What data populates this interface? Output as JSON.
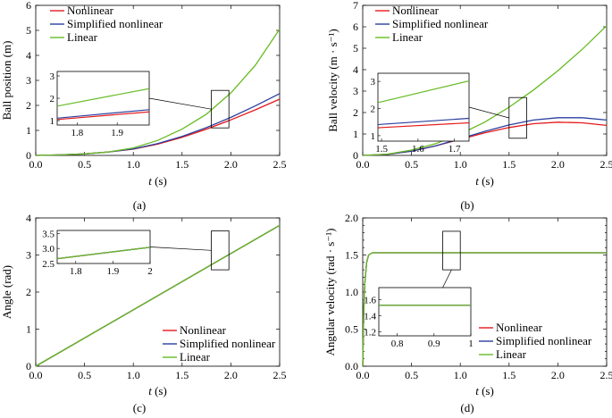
{
  "colors": {
    "nonlinear": "#e41a1c",
    "simplified": "#2b3f9e",
    "linear": "#66bb22"
  },
  "chart_data": [
    {
      "type": "line",
      "caption": "(a)",
      "xlabel_var": "t",
      "xlabel_unit": " (s)",
      "ylabel": "Ball position (m)",
      "xlim": [
        0,
        2.5
      ],
      "ylim": [
        0,
        6
      ],
      "xticks": [
        "0.0",
        "0.5",
        "1.0",
        "1.5",
        "2.0",
        "2.5"
      ],
      "yticks": [
        "0",
        "1",
        "2",
        "3",
        "4",
        "5",
        "6"
      ],
      "legend": "top-left",
      "series": [
        {
          "name": "Nonlinear",
          "color_key": "nonlinear",
          "x": [
            0,
            0.25,
            0.5,
            0.75,
            1.0,
            1.25,
            1.5,
            1.75,
            2.0,
            2.25,
            2.5
          ],
          "y": [
            0,
            0.02,
            0.06,
            0.14,
            0.25,
            0.45,
            0.72,
            1.05,
            1.42,
            1.82,
            2.25
          ]
        },
        {
          "name": "Simplified nonlinear",
          "color_key": "simplified",
          "x": [
            0,
            0.25,
            0.5,
            0.75,
            1.0,
            1.25,
            1.5,
            1.75,
            2.0,
            2.25,
            2.5
          ],
          "y": [
            0,
            0.02,
            0.06,
            0.14,
            0.26,
            0.47,
            0.76,
            1.11,
            1.52,
            1.98,
            2.47
          ]
        },
        {
          "name": "Linear",
          "color_key": "linear",
          "x": [
            0,
            0.25,
            0.5,
            0.75,
            1.0,
            1.25,
            1.5,
            1.75,
            2.0,
            2.25,
            2.5
          ],
          "y": [
            0,
            0.02,
            0.06,
            0.14,
            0.3,
            0.6,
            1.05,
            1.65,
            2.5,
            3.6,
            5.05
          ]
        }
      ],
      "inset": {
        "xlim": [
          1.75,
          1.98
        ],
        "ylim": [
          0.8,
          3.2
        ],
        "xticks": [
          "1.8",
          "1.9"
        ],
        "yticks": [
          "1",
          "2",
          "3"
        ],
        "zoom_x": [
          1.8,
          1.98
        ],
        "zoom_y": [
          1.1,
          2.6
        ]
      }
    },
    {
      "type": "line",
      "caption": "(b)",
      "xlabel_var": "t",
      "xlabel_unit": " (s)",
      "ylabel": "Ball velocity (m · s⁻¹)",
      "xlim": [
        0,
        2.5
      ],
      "ylim": [
        0,
        7
      ],
      "xticks": [
        "0.0",
        "0.5",
        "1.0",
        "1.5",
        "2.0",
        "2.5"
      ],
      "yticks": [
        "0",
        "1",
        "2",
        "3",
        "4",
        "5",
        "6",
        "7"
      ],
      "legend": "top-left",
      "series": [
        {
          "name": "Nonlinear",
          "color_key": "nonlinear",
          "x": [
            0,
            0.25,
            0.5,
            0.75,
            1.0,
            1.25,
            1.5,
            1.75,
            2.0,
            2.25,
            2.5
          ],
          "y": [
            0,
            0.05,
            0.2,
            0.45,
            0.75,
            1.05,
            1.3,
            1.48,
            1.55,
            1.52,
            1.4
          ]
        },
        {
          "name": "Simplified nonlinear",
          "color_key": "simplified",
          "x": [
            0,
            0.25,
            0.5,
            0.75,
            1.0,
            1.25,
            1.5,
            1.75,
            2.0,
            2.25,
            2.5
          ],
          "y": [
            0,
            0.05,
            0.2,
            0.45,
            0.78,
            1.12,
            1.42,
            1.65,
            1.76,
            1.76,
            1.65
          ]
        },
        {
          "name": "Linear",
          "color_key": "linear",
          "x": [
            0,
            0.25,
            0.5,
            0.75,
            1.0,
            1.25,
            1.5,
            1.75,
            2.0,
            2.25,
            2.5
          ],
          "y": [
            0,
            0.06,
            0.25,
            0.55,
            1.0,
            1.55,
            2.25,
            3.05,
            3.95,
            4.95,
            6.05
          ]
        }
      ],
      "inset": {
        "xlim": [
          1.49,
          1.74
        ],
        "ylim": [
          0.8,
          3.3
        ],
        "xticks": [
          "1.5",
          "1.6",
          "1.7"
        ],
        "yticks": [
          "1",
          "2",
          "3"
        ],
        "zoom_x": [
          1.5,
          1.68
        ],
        "zoom_y": [
          0.8,
          2.7
        ]
      }
    },
    {
      "type": "line",
      "caption": "(c)",
      "xlabel_var": "t",
      "xlabel_unit": " (s)",
      "ylabel": "Angle (rad)",
      "xlim": [
        0,
        2.5
      ],
      "ylim": [
        0,
        4
      ],
      "xticks": [
        "0.0",
        "0.5",
        "1.0",
        "1.5",
        "2.0",
        "2.5"
      ],
      "yticks": [
        "0",
        "1",
        "2",
        "3",
        "4"
      ],
      "legend": "bottom-right",
      "series": [
        {
          "name": "Nonlinear",
          "color_key": "nonlinear",
          "x": [
            0,
            2.5
          ],
          "y": [
            0,
            3.8
          ]
        },
        {
          "name": "Simplified nonlinear",
          "color_key": "simplified",
          "x": [
            0,
            2.5
          ],
          "y": [
            0,
            3.8
          ]
        },
        {
          "name": "Linear",
          "color_key": "linear",
          "x": [
            0,
            2.5
          ],
          "y": [
            0,
            3.8
          ]
        }
      ],
      "inset": {
        "xlim": [
          1.75,
          2.0
        ],
        "ylim": [
          2.5,
          3.6
        ],
        "xticks": [
          "1.8",
          "1.9",
          "2"
        ],
        "yticks": [
          "2.5",
          "3.0",
          "3.5"
        ],
        "zoom_x": [
          1.8,
          1.98
        ],
        "zoom_y": [
          2.6,
          3.65
        ]
      }
    },
    {
      "type": "line",
      "caption": "(d)",
      "xlabel_var": "t",
      "xlabel_unit": " (s)",
      "ylabel": "Angular velocity (rad · s⁻¹)",
      "xlim": [
        0,
        2.5
      ],
      "ylim": [
        0,
        2.0
      ],
      "xticks": [
        "0.0",
        "0.5",
        "1.0",
        "1.5",
        "2.0",
        "2.5"
      ],
      "yticks": [
        "0.0",
        "0.1",
        "0.2",
        "0.3",
        "0.4",
        "0.5",
        "0.6",
        "0.7",
        "0.8",
        "0.9",
        "1.0",
        "1.1",
        "1.2",
        "1.3",
        "1.4",
        "1.5",
        "1.6",
        "1.7",
        "1.8",
        "1.9",
        "2.0"
      ],
      "yticks_shown": [
        "0.0",
        "0.5",
        "1.0",
        "1.5",
        "2.0"
      ],
      "legend": "bottom-right",
      "series": [
        {
          "name": "Nonlinear",
          "color_key": "nonlinear",
          "x": [
            0,
            0.01,
            0.02,
            0.04,
            0.06,
            0.1,
            0.2,
            2.5
          ],
          "y": [
            0,
            0.7,
            1.1,
            1.4,
            1.5,
            1.53,
            1.53,
            1.53
          ]
        },
        {
          "name": "Simplified nonlinear",
          "color_key": "simplified",
          "x": [
            0,
            0.01,
            0.02,
            0.04,
            0.06,
            0.1,
            0.2,
            2.5
          ],
          "y": [
            0,
            0.7,
            1.1,
            1.4,
            1.5,
            1.53,
            1.53,
            1.53
          ]
        },
        {
          "name": "Linear",
          "color_key": "linear",
          "x": [
            0,
            0.01,
            0.02,
            0.04,
            0.06,
            0.1,
            0.2,
            2.5
          ],
          "y": [
            0,
            0.7,
            1.1,
            1.4,
            1.5,
            1.53,
            1.53,
            1.53
          ]
        }
      ],
      "inset": {
        "xlim": [
          0.75,
          1.0
        ],
        "ylim": [
          1.15,
          1.75
        ],
        "xticks": [
          "0.8",
          "0.9",
          "1"
        ],
        "yticks": [
          "1.2",
          "1.4",
          "1.6"
        ],
        "zoom_x": [
          0.82,
          1.0
        ],
        "zoom_y": [
          1.3,
          1.82
        ]
      }
    }
  ]
}
